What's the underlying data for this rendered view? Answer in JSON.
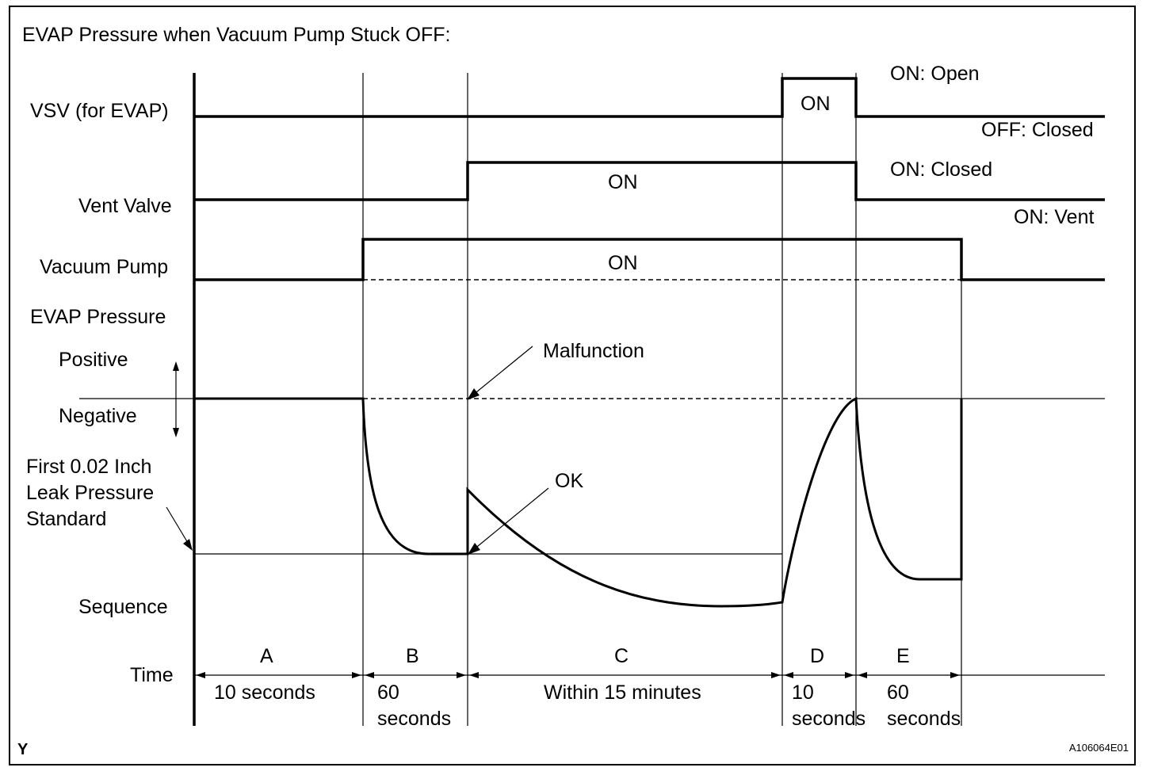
{
  "title": "EVAP Pressure when Vacuum Pump Stuck OFF:",
  "rows": {
    "vsv": "VSV (for EVAP)",
    "vent_valve": "Vent Valve",
    "vacuum_pump": "Vacuum Pump",
    "evap_pressure": "EVAP Pressure",
    "positive": "Positive",
    "negative": "Negative",
    "leak_line1": "First 0.02 Inch",
    "leak_line2": "Leak Pressure",
    "leak_line3": "Standard",
    "sequence": "Sequence",
    "time": "Time"
  },
  "states": {
    "vsv_on": "ON",
    "vsv_on_meaning": "ON: Open",
    "vsv_off_meaning": "OFF: Closed",
    "vent_on": "ON",
    "vent_on_meaning": "ON: Closed",
    "vent_off_meaning": "ON: Vent",
    "pump_on": "ON"
  },
  "annotations": {
    "malfunction": "Malfunction",
    "ok": "OK"
  },
  "sequence": [
    {
      "letter": "A",
      "time": "10 seconds",
      "time2": ""
    },
    {
      "letter": "B",
      "time": "60",
      "time2": "seconds"
    },
    {
      "letter": "C",
      "time": "Within 15 minutes",
      "time2": ""
    },
    {
      "letter": "D",
      "time": "10",
      "time2": "seconds"
    },
    {
      "letter": "E",
      "time": "60",
      "time2": "seconds"
    }
  ],
  "corner_left": "Y",
  "figure_id": "A106064E01"
}
